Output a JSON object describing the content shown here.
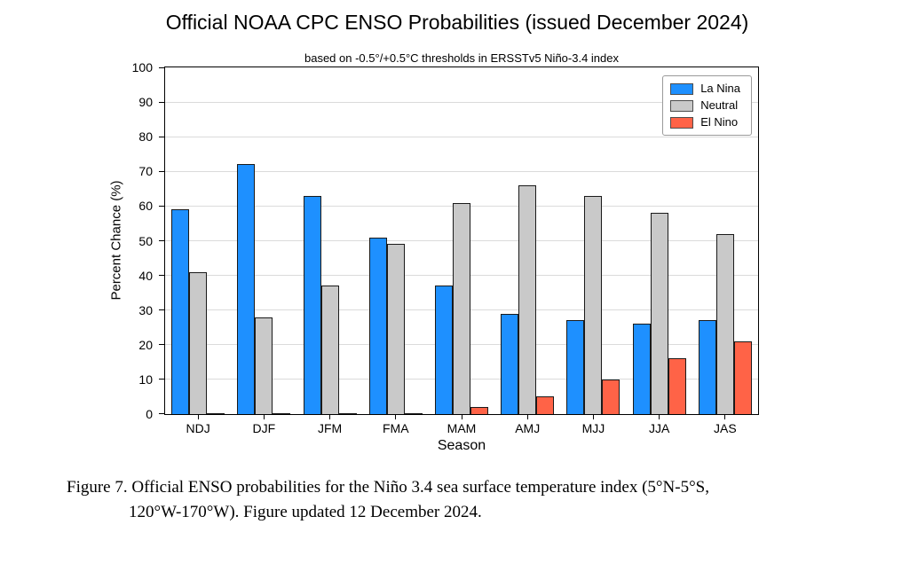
{
  "chart_data": {
    "type": "bar",
    "title": "Official NOAA CPC ENSO Probabilities (issued December 2024)",
    "subtitle": "based on -0.5°/+0.5°C thresholds in ERSSTv5 Niño-3.4 index",
    "xlabel": "Season",
    "ylabel": "Percent Chance (%)",
    "ylim": [
      0,
      100
    ],
    "yticks": [
      0,
      10,
      20,
      30,
      40,
      50,
      60,
      70,
      80,
      90,
      100
    ],
    "grid": true,
    "legend_position": "upper right",
    "categories": [
      "NDJ",
      "DJF",
      "JFM",
      "FMA",
      "MAM",
      "AMJ",
      "MJJ",
      "JJA",
      "JAS"
    ],
    "series": [
      {
        "name": "La Nina",
        "color": "#1E90FF",
        "values": [
          59,
          72,
          63,
          51,
          37,
          29,
          27,
          26,
          27
        ]
      },
      {
        "name": "Neutral",
        "color": "#C9C9C9",
        "values": [
          41,
          28,
          37,
          49,
          61,
          66,
          63,
          58,
          52
        ]
      },
      {
        "name": "El Nino",
        "color": "#FF6347",
        "values": [
          0,
          0,
          0,
          0,
          2,
          5,
          10,
          16,
          21
        ]
      }
    ],
    "bar_edge_color": "#1a1a1a"
  },
  "caption": {
    "line1": "Figure 7. Official ENSO probabilities for the Niño 3.4 sea surface temperature index (5°N-5°S,",
    "line2": "120°W-170°W). Figure updated 12 December 2024."
  }
}
